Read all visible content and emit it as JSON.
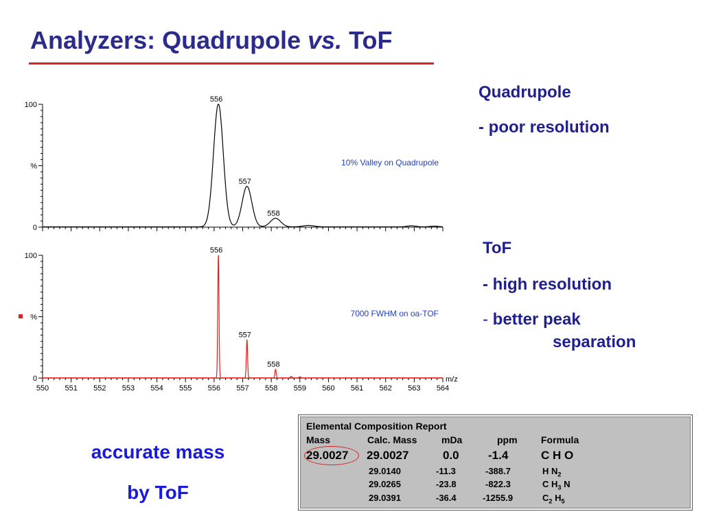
{
  "title": {
    "part1": "Analyzers: Quadrupole ",
    "part2": "vs.",
    "part3": " ToF"
  },
  "side_quad": {
    "label": "Quadrupole",
    "desc": "- poor resolution"
  },
  "side_tof": {
    "label": "ToF",
    "desc1": "- high resolution",
    "desc2_dash": "-",
    "desc2a": "better peak",
    "desc2b": "separation"
  },
  "bottom": {
    "line1": "accurate mass",
    "line2": "by ToF"
  },
  "report": {
    "title": "Elemental Composition Report",
    "headers": [
      "Mass",
      "Calc. Mass",
      "mDa",
      "ppm",
      "Formula"
    ],
    "mass": "29.0027",
    "rows": [
      {
        "calc": "29.0027",
        "mda": "0.0",
        "ppm": "-1.4",
        "formula_parts": [
          "C H O"
        ]
      },
      {
        "calc": "29.0140",
        "mda": "-11.3",
        "ppm": "-388.7",
        "formula_parts": [
          "H N",
          "2",
          ""
        ]
      },
      {
        "calc": "29.0265",
        "mda": "-23.8",
        "ppm": "-822.3",
        "formula_parts": [
          "C H",
          "3",
          " N"
        ]
      },
      {
        "calc": "29.0391",
        "mda": "-36.4",
        "ppm": "-1255.9",
        "formula_parts": [
          "C",
          "2",
          " H",
          "5",
          ""
        ]
      }
    ]
  },
  "chart_data": [
    {
      "type": "line",
      "annotation": "10% Valley on Quadrupole",
      "ylabel": "%",
      "yticks": [
        "0",
        "100"
      ],
      "xlim": [
        550,
        564
      ],
      "ylim": [
        0,
        100
      ],
      "color": "#000000",
      "peak_labels": [
        {
          "x": 556.0,
          "text": "556"
        },
        {
          "x": 557.0,
          "text": "557"
        },
        {
          "x": 558.0,
          "text": "558"
        }
      ],
      "peaks": [
        {
          "x": 556.15,
          "y": 100,
          "w": 0.17
        },
        {
          "x": 557.15,
          "y": 33,
          "w": 0.17
        },
        {
          "x": 558.15,
          "y": 7,
          "w": 0.18
        },
        {
          "x": 559.3,
          "y": 1.2,
          "w": 0.2
        },
        {
          "x": 562.9,
          "y": 0.9,
          "w": 0.15
        },
        {
          "x": 563.7,
          "y": 0.6,
          "w": 0.15
        }
      ]
    },
    {
      "type": "line",
      "annotation": "7000 FWHM on oa-TOF",
      "ylabel": "%",
      "yticks": [
        "0",
        "100"
      ],
      "xlabel": "m/z",
      "xlim": [
        550,
        564
      ],
      "ylim": [
        0,
        100
      ],
      "xticks": [
        "550",
        "551",
        "552",
        "553",
        "554",
        "555",
        "556",
        "557",
        "558",
        "559",
        "560",
        "561",
        "562",
        "563",
        "564"
      ],
      "color": "#e02020",
      "peak_labels": [
        {
          "x": 556.0,
          "text": "556"
        },
        {
          "x": 557.0,
          "text": "557"
        },
        {
          "x": 558.0,
          "text": "558"
        }
      ],
      "peaks": [
        {
          "x": 556.15,
          "y": 100,
          "w": 0.022
        },
        {
          "x": 557.15,
          "y": 31,
          "w": 0.022
        },
        {
          "x": 558.15,
          "y": 7,
          "w": 0.022
        },
        {
          "x": 558.7,
          "y": 1.2,
          "w": 0.03
        },
        {
          "x": 559.0,
          "y": 0.9,
          "w": 0.03
        }
      ]
    }
  ],
  "colors": {
    "title": "#2b2b8c",
    "accent_red": "#e02020",
    "side_text": "#1f1f8f",
    "bottom_text": "#1a1adc",
    "annotation_blue": "#1f3fbf"
  }
}
